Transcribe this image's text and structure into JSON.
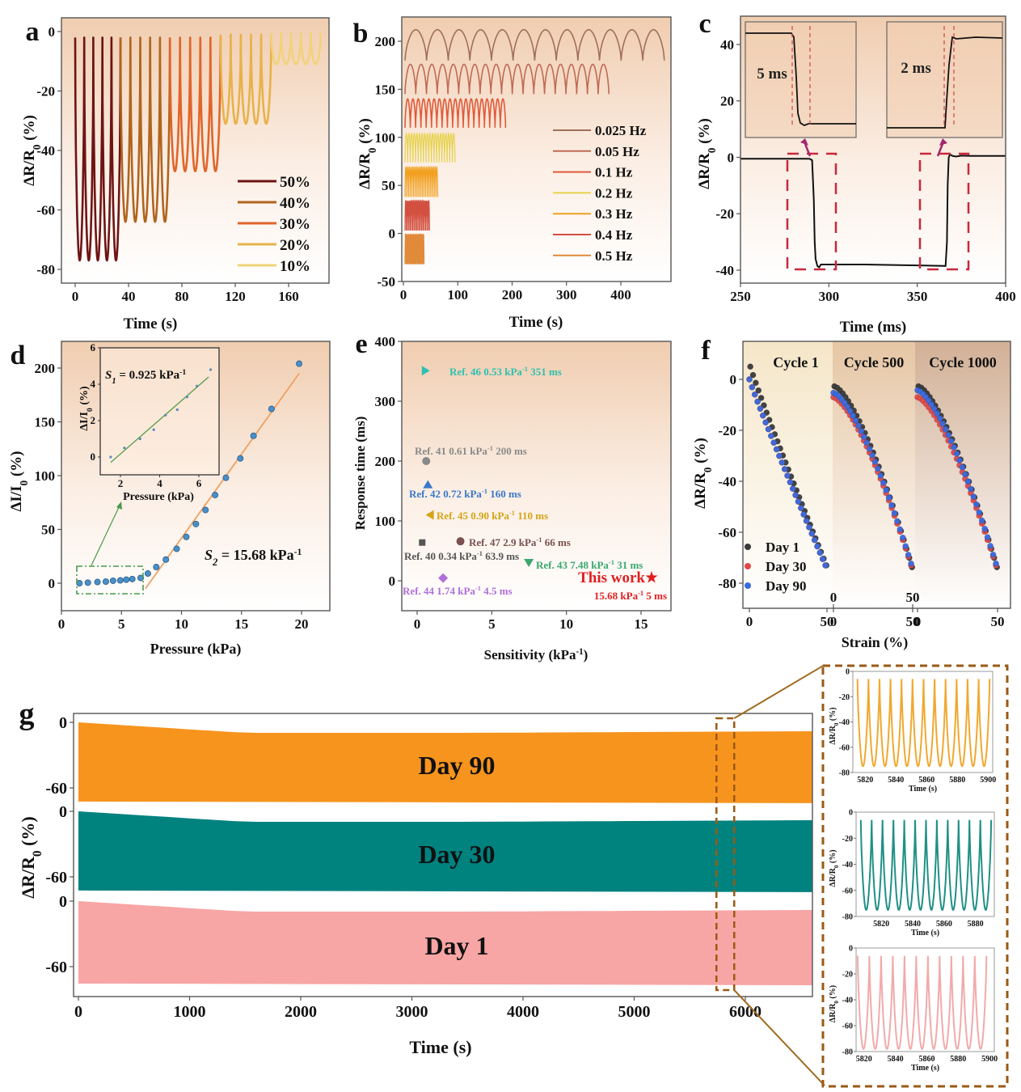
{
  "chart_data": [
    {
      "panel": "a",
      "type": "line",
      "xlabel": "Time (s)",
      "ylabel": "ΔR/R0 (%)",
      "xlim": [
        -10,
        185
      ],
      "ylim": [
        -85,
        5
      ],
      "xticks": [
        0,
        40,
        80,
        120,
        160
      ],
      "yticks": [
        0,
        -20,
        -40,
        -60,
        -80
      ],
      "legend_position": "bottom-right",
      "series": [
        {
          "name": "50%",
          "color": "#6e1414",
          "t_start": 0,
          "t_end": 34,
          "cycles": 5,
          "min": -77,
          "max": -2
        },
        {
          "name": "40%",
          "color": "#b0651e",
          "t_start": 34,
          "t_end": 71,
          "cycles": 5,
          "min": -64,
          "max": -2
        },
        {
          "name": "30%",
          "color": "#e0652a",
          "t_start": 71,
          "t_end": 109,
          "cycles": 5,
          "min": -47,
          "max": -2
        },
        {
          "name": "20%",
          "color": "#e8b24a",
          "t_start": 109,
          "t_end": 147,
          "cycles": 5,
          "min": -31,
          "max": -1
        },
        {
          "name": "10%",
          "color": "#f2d27a",
          "t_start": 147,
          "t_end": 184,
          "cycles": 5,
          "min": -11,
          "max": -0.5
        }
      ]
    },
    {
      "panel": "b",
      "type": "line",
      "xlabel": "Time (s)",
      "ylabel": "ΔR/R0 (%)",
      "xlim": [
        -2,
        490
      ],
      "ylim": [
        -50,
        225
      ],
      "xticks": [
        0,
        100,
        200,
        300,
        400
      ],
      "yticks": [
        200,
        150,
        100,
        50,
        0,
        -50
      ],
      "legend_position": "right",
      "series": [
        {
          "name": "0.025 Hz",
          "color": "#a0705a",
          "t_end": 480,
          "cycles": 12,
          "top": 212,
          "bottom": 180
        },
        {
          "name": "0.05 Hz",
          "color": "#c06a55",
          "t_end": 378,
          "cycles": 19,
          "top": 176,
          "bottom": 145
        },
        {
          "name": "0.1 Hz",
          "color": "#e05a3a",
          "t_end": 188,
          "cycles": 19,
          "top": 140,
          "bottom": 110
        },
        {
          "name": "0.2 Hz",
          "color": "#e6d24a",
          "t_end": 95,
          "cycles": 19,
          "top": 104,
          "bottom": 74
        },
        {
          "name": "0.3 Hz",
          "color": "#f2a020",
          "t_end": 63,
          "cycles": 19,
          "top": 69,
          "bottom": 38
        },
        {
          "name": "0.4 Hz",
          "color": "#d35040",
          "t_end": 48,
          "cycles": 19,
          "top": 34,
          "bottom": 3
        },
        {
          "name": "0.5 Hz",
          "color": "#e08a3a",
          "t_end": 38,
          "cycles": 19,
          "top": -1,
          "bottom": -32
        }
      ]
    },
    {
      "panel": "c",
      "type": "line",
      "xlabel": "Time (ms)",
      "ylabel": "ΔR/R0 (%)",
      "xlim": [
        250,
        400
      ],
      "ylim": [
        -45,
        50
      ],
      "xticks": [
        250,
        300,
        350,
        400
      ],
      "yticks": [
        40,
        20,
        0,
        -20,
        -40
      ],
      "series": [
        {
          "name": "response",
          "color": "#111111",
          "points": [
            [
              250,
              -0.5
            ],
            [
              289,
              -0.5
            ],
            [
              290.5,
              -1
            ],
            [
              291.5,
              -15
            ],
            [
              292,
              -30
            ],
            [
              292.5,
              -36
            ],
            [
              293.5,
              -38.5
            ],
            [
              294.5,
              -39
            ],
            [
              295.5,
              -38
            ],
            [
              320,
              -38
            ],
            [
              340,
              -38.2
            ],
            [
              366,
              -38.5
            ],
            [
              366.8,
              -30
            ],
            [
              367.2,
              -10
            ],
            [
              367.8,
              0
            ],
            [
              368.5,
              1
            ],
            [
              370,
              0.5
            ],
            [
              372,
              0.3
            ],
            [
              375,
              0.6
            ],
            [
              380,
              0.5
            ],
            [
              400,
              0.5
            ]
          ]
        }
      ],
      "insets": [
        {
          "label": "5 ms",
          "x_pos": "left"
        },
        {
          "label": "2 ms",
          "x_pos": "right"
        }
      ]
    },
    {
      "panel": "d",
      "type": "scatter",
      "xlabel": "Pressure (kPa)",
      "ylabel": "ΔI/I0 (%)",
      "xlim": [
        0,
        22.5
      ],
      "ylim": [
        -25,
        225
      ],
      "xticks": [
        0,
        5,
        10,
        15,
        20
      ],
      "yticks": [
        0,
        50,
        100,
        150,
        200
      ],
      "points": [
        [
          1.5,
          0
        ],
        [
          2.2,
          0.5
        ],
        [
          3.0,
          1.1
        ],
        [
          3.7,
          1.5
        ],
        [
          4.3,
          2.3
        ],
        [
          4.9,
          2.6
        ],
        [
          5.4,
          3.3
        ],
        [
          5.9,
          3.9
        ],
        [
          6.6,
          4.9
        ],
        [
          7.2,
          9
        ],
        [
          7.9,
          15
        ],
        [
          8.7,
          22
        ],
        [
          9.6,
          32
        ],
        [
          10.4,
          43
        ],
        [
          11.2,
          55
        ],
        [
          12.0,
          68
        ],
        [
          12.8,
          82
        ],
        [
          13.7,
          98
        ],
        [
          14.9,
          116
        ],
        [
          16.0,
          137
        ],
        [
          17.5,
          162
        ],
        [
          19.8,
          204
        ]
      ],
      "fit2": {
        "x": [
          7.0,
          19.8
        ],
        "y": [
          -5,
          195
        ],
        "color": "#f0a060"
      },
      "annotation_s2": "S₂ = 15.68 kPa⁻¹",
      "inset": {
        "xlabel": "Pressure (kPa)",
        "ylabel": "ΔI/I0 (%)",
        "xlim": [
          1.2,
          6.9
        ],
        "ylim": [
          -1,
          6
        ],
        "xticks": [
          2,
          4,
          6
        ],
        "yticks": [
          0,
          2,
          4,
          6
        ],
        "points": [
          [
            1.5,
            0
          ],
          [
            2.2,
            0.5
          ],
          [
            3.0,
            1.0
          ],
          [
            3.7,
            1.5
          ],
          [
            4.3,
            2.3
          ],
          [
            4.9,
            2.6
          ],
          [
            5.4,
            3.3
          ],
          [
            5.9,
            3.9
          ],
          [
            6.6,
            4.8
          ]
        ],
        "fit1": {
          "x": [
            1.5,
            6.5
          ],
          "y": [
            -0.3,
            4.4
          ],
          "color": "#5fa050"
        },
        "annotation_s1": "S₁ = 0.925 kPa⁻¹"
      }
    },
    {
      "panel": "e",
      "type": "scatter",
      "xlabel": "Sensitivity (kPa⁻¹)",
      "ylabel": "Response time (ms)",
      "xlim": [
        -1,
        17
      ],
      "ylim": [
        -50,
        400
      ],
      "xticks": [
        0,
        5,
        10,
        15
      ],
      "yticks": [
        0,
        100,
        200,
        300,
        400
      ],
      "points": [
        {
          "label": "Ref. 46 0.53 kPa⁻¹ 351 ms",
          "x": 0.53,
          "y": 351,
          "marker": "triangle-right",
          "color": "#2fbfb0"
        },
        {
          "label": "Ref. 41 0.61 kPa⁻¹ 200 ms",
          "x": 0.61,
          "y": 200,
          "marker": "circle",
          "color": "#8a8a8a"
        },
        {
          "label": "Ref. 42 0.72 kPa⁻¹ 160 ms",
          "x": 0.72,
          "y": 160,
          "marker": "triangle-up",
          "color": "#3a78c8"
        },
        {
          "label": "Ref. 45 0.90 kPa⁻¹ 110 ms",
          "x": 0.9,
          "y": 110,
          "marker": "triangle-left",
          "color": "#d4a418"
        },
        {
          "label": "Ref. 47 2.9 kPa⁻¹ 66 ms",
          "x": 2.9,
          "y": 66,
          "marker": "circle",
          "color": "#7a5050"
        },
        {
          "label": "Ref. 40 0.34 kPa⁻¹ 63.9 ms",
          "x": 0.34,
          "y": 63.9,
          "marker": "square",
          "color": "#555555"
        },
        {
          "label": "Ref. 43 7.48 kPa⁻¹ 31 ms",
          "x": 7.48,
          "y": 31,
          "marker": "triangle-down",
          "color": "#3aa870"
        },
        {
          "label": "Ref. 44 1.74 kPa⁻¹ 4.5 ms",
          "x": 1.74,
          "y": 4.5,
          "marker": "diamond",
          "color": "#b070d8"
        },
        {
          "label": "This work",
          "sublabel": "15.68 kPa⁻¹ 5 ms",
          "x": 15.68,
          "y": 5,
          "marker": "star",
          "color": "#e02020"
        }
      ]
    },
    {
      "panel": "f",
      "type": "scatter",
      "xlabel": "Strain (%)",
      "ylabel": "ΔR/R0 (%)",
      "ylim": [
        -90,
        15
      ],
      "yticks": [
        0,
        -20,
        -40,
        -60,
        -80
      ],
      "segments": [
        "Cycle 1",
        "Cycle 500",
        "Cycle 1000"
      ],
      "segment_xticks": [
        "0",
        "50"
      ],
      "legend_position": "bottom-left",
      "series": [
        {
          "name": "Day 1",
          "color": "#3a3a3a",
          "start_offsets": [
            5,
            -2,
            -2
          ]
        },
        {
          "name": "Day 30",
          "color": "#e04a4a",
          "start_offsets": [
            0,
            -7,
            -7
          ]
        },
        {
          "name": "Day 90",
          "color": "#3a6ae0",
          "start_offsets": [
            0,
            -6,
            -5
          ]
        }
      ],
      "end_value": -73
    },
    {
      "panel": "g",
      "type": "area",
      "xlabel": "Time (s)",
      "ylabel": "ΔR/R0 (%)",
      "xlim": [
        -20,
        6650
      ],
      "xticks": [
        0,
        1000,
        2000,
        3000,
        4000,
        5000,
        6000
      ],
      "band_yticks": [
        "0",
        "-60"
      ],
      "data_end": 6600,
      "bands": [
        {
          "name": "Day 90",
          "color": "#f7941d",
          "max": 0,
          "min": -74
        },
        {
          "name": "Day 30",
          "color": "#00827f",
          "max": 0,
          "min": -74
        },
        {
          "name": "Day  1",
          "color": "#f8a5a5",
          "max": 0,
          "min": -77
        }
      ],
      "zoom_window": [
        5740,
        5900
      ],
      "insets": [
        {
          "color": "#f0a830",
          "xlabel": "Time (s)",
          "ylabel": "ΔR/R0 (%)",
          "xlim": [
            5812,
            5903
          ],
          "xticks": [
            5820,
            5840,
            5860,
            5880,
            5900
          ],
          "yticks": [
            0,
            -20,
            -40,
            -60,
            -80
          ],
          "min": -75,
          "max": -6,
          "cycles": 12,
          "t_start": 5815,
          "t_end": 5901
        },
        {
          "color": "#1f9086",
          "xlabel": "Time (s)",
          "ylabel": "ΔR/R0 (%)",
          "xlim": [
            5804,
            5892
          ],
          "xticks": [
            5820,
            5840,
            5860,
            5880
          ],
          "yticks": [
            0,
            -20,
            -40,
            -60,
            -80
          ],
          "min": -75,
          "max": -6,
          "cycles": 12,
          "t_start": 5807,
          "t_end": 5890
        },
        {
          "color": "#f2aaaa",
          "xlabel": "Time (s)",
          "ylabel": "ΔR/R0 (%)",
          "xlim": [
            5815,
            5903
          ],
          "xticks": [
            5820,
            5840,
            5860,
            5880,
            5900
          ],
          "yticks": [
            0,
            -20,
            -40,
            -60,
            -80
          ],
          "min": -78,
          "max": -6,
          "cycles": 11,
          "t_start": 5816,
          "t_end": 5898
        }
      ]
    }
  ]
}
